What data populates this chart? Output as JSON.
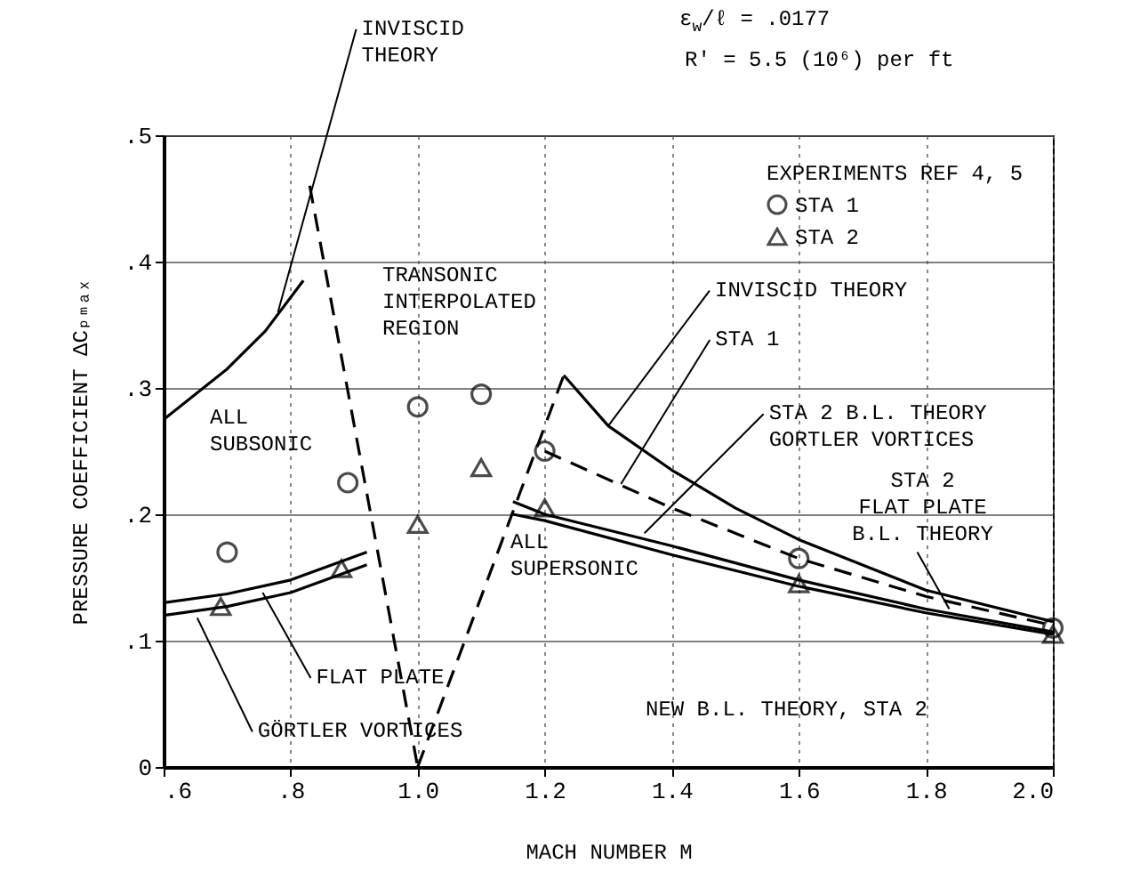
{
  "chart_data": {
    "type": "line",
    "xlabel": "MACH NUMBER M",
    "ylabel": "PRESSURE COEFFICIENT ΔCₚₘₐₓ",
    "legend_title": "EXPERIMENTS REF 4, 5",
    "legend": "top right",
    "xlim": [
      0.6,
      2.0
    ],
    "ylim": [
      0,
      0.5
    ],
    "xticks": [
      {
        "value": 0.6,
        "label": ".6"
      },
      {
        "value": 0.8,
        "label": ".8"
      },
      {
        "value": 1.0,
        "label": "1.0"
      },
      {
        "value": 1.2,
        "label": "1.2"
      },
      {
        "value": 1.4,
        "label": "1.4"
      },
      {
        "value": 1.6,
        "label": "1.6"
      },
      {
        "value": 1.8,
        "label": "1.8"
      },
      {
        "value": 2.0,
        "label": "2.0"
      }
    ],
    "yticks": [
      0,
      {
        "value": 0.1,
        "label": ".1"
      },
      {
        "value": 0.2,
        "label": ".2"
      },
      {
        "value": 0.3,
        "label": ".3"
      },
      {
        "value": 0.4,
        "label": ".4"
      },
      {
        "value": 0.5,
        "label": ".5"
      }
    ],
    "grid": true,
    "series": [
      {
        "color": "#000000",
        "line_style": "solid",
        "x": [
          0.6,
          0.7,
          0.76,
          0.82
        ],
        "values": [
          0.275,
          0.315,
          0.345,
          0.385
        ]
      },
      {
        "type": "line",
        "color": "#000000",
        "line_style": "solid",
        "x": [
          1.23,
          1.3,
          1.4,
          1.5,
          1.6,
          1.8,
          2.0
        ],
        "values": [
          0.31,
          0.27,
          0.235,
          0.205,
          0.18,
          0.14,
          0.115
        ]
      },
      {
        "type": "line",
        "color": "#000000",
        "line_style": "dashed",
        "x": [
          1.2,
          1.4,
          1.6,
          1.8,
          2.0
        ],
        "values": [
          0.25,
          0.205,
          0.165,
          0.135,
          0.112
        ]
      },
      {
        "type": "line",
        "color": "#000000",
        "line_style": "solid",
        "x": [
          0.6,
          0.7,
          0.8,
          0.92
        ],
        "values": [
          0.13,
          0.137,
          0.148,
          0.17
        ]
      },
      {
        "type": "line",
        "color": "#000000",
        "line_style": "solid",
        "x": [
          0.6,
          0.7,
          0.8,
          0.92
        ],
        "values": [
          0.12,
          0.127,
          0.138,
          0.16
        ]
      },
      {
        "type": "line",
        "color": "#000000",
        "line_style": "solid",
        "x": [
          1.15,
          1.2,
          1.4,
          1.6,
          1.8,
          2.0
        ],
        "values": [
          0.21,
          0.2,
          0.175,
          0.148,
          0.125,
          0.107
        ]
      },
      {
        "type": "line",
        "color": "#000000",
        "line_style": "solid",
        "x": [
          1.15,
          1.2,
          1.4,
          1.6,
          1.8,
          2.0
        ],
        "values": [
          0.2,
          0.195,
          0.168,
          0.143,
          0.122,
          0.105
        ]
      },
      {
        "type": "line",
        "color": "#000000",
        "line_style": "dashed",
        "x": [
          0.83,
          1.0
        ],
        "values": [
          0.46,
          0
        ]
      },
      {
        "type": "line",
        "color": "#000000",
        "line_style": "dashed",
        "x": [
          1.0,
          1.23
        ],
        "values": [
          0,
          0.31
        ]
      },
      {
        "type": "scatter",
        "name": "STA 1",
        "color": "#000000",
        "marker": "circle",
        "x": [
          0.7,
          0.89,
          1.0,
          1.1,
          1.2,
          1.6,
          2.0
        ],
        "values": [
          0.17,
          0.225,
          0.285,
          0.295,
          0.25,
          0.165,
          0.11
        ]
      },
      {
        "type": "scatter",
        "name": "STA 2",
        "color": "#000000",
        "marker": "triangle",
        "x": [
          0.69,
          0.88,
          1.0,
          1.1,
          1.2,
          1.6,
          2.0
        ],
        "values": [
          0.127,
          0.157,
          0.192,
          0.237,
          0.205,
          0.145,
          0.105
        ]
      }
    ],
    "annotations": [
      {
        "text": "INVISCID\nTHEORY",
        "x": 0.78,
        "y": 0.36
      },
      {
        "text": "INVISCID THEORY",
        "x": 1.3,
        "y": 0.27
      },
      {
        "text": "STA 1",
        "x": 1.32,
        "y": 0.224
      },
      {
        "text": "STA 2 B.L. THEORY\n GORTLER VORTICES",
        "x": 1.357,
        "y": 0.185
      },
      {
        "text": "STA 2\nFLAT PLATE\nB.L. THEORY",
        "x": 1.837,
        "y": 0.125
      },
      {
        "text": "FLAT PLATE",
        "x": 0.756,
        "y": 0.138
      },
      {
        "text": "GÖRTLER VORTICES",
        "x": 0.653,
        "y": 0.118
      },
      "ε$_{w}$/ℓ = .0177",
      "R' = 5.5 (10⁶) per ft",
      "ALL\nSUBSONIC",
      "TRANSONIC\nINTERPOLATED\nREGION",
      "ALL\nSUPERSONIC",
      "NEW B.L. THEORY, STA 2"
    ]
  }
}
